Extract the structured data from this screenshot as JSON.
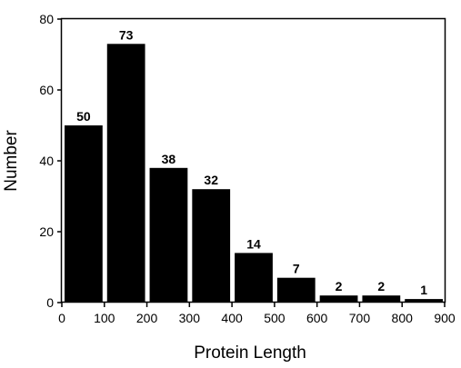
{
  "chart_data": {
    "type": "bar",
    "title": "",
    "xlabel": "Protein Length",
    "ylabel": "Number",
    "bins": [
      [
        0,
        100
      ],
      [
        100,
        200
      ],
      [
        200,
        300
      ],
      [
        300,
        400
      ],
      [
        400,
        500
      ],
      [
        500,
        600
      ],
      [
        600,
        700
      ],
      [
        700,
        800
      ],
      [
        800,
        900
      ]
    ],
    "values": [
      50,
      73,
      38,
      32,
      14,
      7,
      2,
      2,
      1
    ],
    "data_labels": [
      "50",
      "73",
      "38",
      "32",
      "14",
      "7",
      "2",
      "2",
      "1"
    ],
    "xlim": [
      0,
      900
    ],
    "ylim": [
      0,
      80
    ],
    "x_ticks": [
      0,
      100,
      200,
      300,
      400,
      500,
      600,
      700,
      800,
      900
    ],
    "x_tick_labels": [
      "0",
      "100",
      "200",
      "300",
      "400",
      "500",
      "600",
      "700",
      "800",
      "900"
    ],
    "y_ticks": [
      0,
      20,
      40,
      60,
      80
    ],
    "y_tick_labels": [
      "0",
      "20",
      "40",
      "60",
      "80"
    ],
    "grid": false,
    "legend": "none",
    "bar_color": "#000000"
  }
}
